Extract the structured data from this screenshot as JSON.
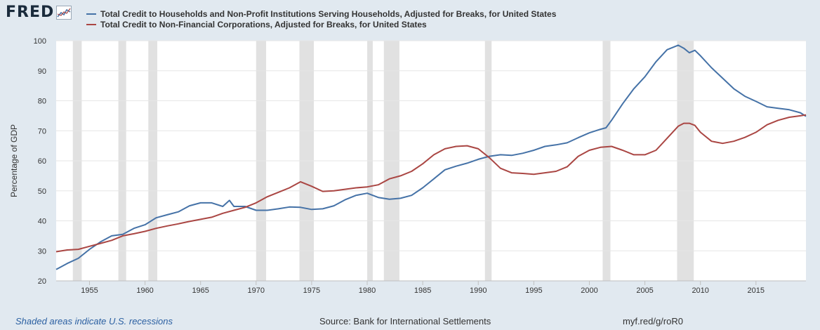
{
  "header": {
    "logo_text": "FRED",
    "legend": [
      {
        "label": "Total Credit to Households and Non-Profit Institutions Serving Households, Adjusted for Breaks, for United States",
        "color": "#4572a7"
      },
      {
        "label": "Total Credit to Non-Financial Corporations, Adjusted for Breaks, for United States",
        "color": "#aa4643"
      }
    ]
  },
  "footer": {
    "recession_note": "Shaded areas indicate U.S. recessions",
    "source": "Source: Bank for International Settlements",
    "url": "myf.red/g/roR0"
  },
  "chart_data": {
    "type": "line",
    "title": "",
    "xlabel": "",
    "ylabel": "Percentage of GDP",
    "xlim": [
      1952.0,
      2019.5
    ],
    "ylim": [
      20,
      100
    ],
    "y_ticks": [
      20,
      30,
      40,
      50,
      60,
      70,
      80,
      90,
      100
    ],
    "x_ticks": [
      1955,
      1960,
      1965,
      1970,
      1975,
      1980,
      1985,
      1990,
      1995,
      2000,
      2005,
      2010,
      2015
    ],
    "recession_color": "#e1e1e1",
    "recessions": [
      [
        1953.5,
        1954.3
      ],
      [
        1957.6,
        1958.3
      ],
      [
        1960.3,
        1961.1
      ],
      [
        1970.0,
        1970.9
      ],
      [
        1973.9,
        1975.2
      ],
      [
        1980.0,
        1980.5
      ],
      [
        1981.5,
        1982.9
      ],
      [
        1990.6,
        1991.2
      ],
      [
        2001.2,
        2001.9
      ],
      [
        2007.9,
        2009.4
      ]
    ],
    "series": [
      {
        "name": "Total Credit to Households and Non-Profit Institutions Serving Households, Adjusted for Breaks, for United States",
        "color": "#4572a7",
        "points": [
          [
            1952.0,
            23.8
          ],
          [
            1953.0,
            25.8
          ],
          [
            1954.0,
            27.5
          ],
          [
            1955.0,
            30.5
          ],
          [
            1956.0,
            33.0
          ],
          [
            1957.0,
            35.0
          ],
          [
            1958.0,
            35.5
          ],
          [
            1959.0,
            37.5
          ],
          [
            1960.0,
            38.7
          ],
          [
            1961.0,
            41.0
          ],
          [
            1962.0,
            42.0
          ],
          [
            1963.0,
            43.0
          ],
          [
            1964.0,
            45.0
          ],
          [
            1965.0,
            46.0
          ],
          [
            1966.0,
            46.0
          ],
          [
            1967.0,
            44.8
          ],
          [
            1967.6,
            46.8
          ],
          [
            1968.0,
            44.8
          ],
          [
            1969.0,
            44.8
          ],
          [
            1970.0,
            43.5
          ],
          [
            1971.0,
            43.5
          ],
          [
            1972.0,
            44.0
          ],
          [
            1973.0,
            44.6
          ],
          [
            1974.0,
            44.5
          ],
          [
            1975.0,
            43.8
          ],
          [
            1976.0,
            44.0
          ],
          [
            1977.0,
            45.0
          ],
          [
            1978.0,
            47.0
          ],
          [
            1979.0,
            48.5
          ],
          [
            1980.0,
            49.2
          ],
          [
            1981.0,
            47.8
          ],
          [
            1982.0,
            47.2
          ],
          [
            1983.0,
            47.5
          ],
          [
            1984.0,
            48.5
          ],
          [
            1985.0,
            51.0
          ],
          [
            1986.0,
            54.0
          ],
          [
            1987.0,
            57.0
          ],
          [
            1988.0,
            58.2
          ],
          [
            1989.0,
            59.2
          ],
          [
            1990.0,
            60.5
          ],
          [
            1991.0,
            61.5
          ],
          [
            1992.0,
            62.0
          ],
          [
            1993.0,
            61.8
          ],
          [
            1994.0,
            62.5
          ],
          [
            1995.0,
            63.5
          ],
          [
            1996.0,
            64.8
          ],
          [
            1997.0,
            65.3
          ],
          [
            1998.0,
            66.0
          ],
          [
            1999.0,
            67.7
          ],
          [
            2000.0,
            69.3
          ],
          [
            2001.0,
            70.5
          ],
          [
            2001.5,
            71.0
          ],
          [
            2002.0,
            73.5
          ],
          [
            2003.0,
            79.0
          ],
          [
            2004.0,
            84.0
          ],
          [
            2005.0,
            88.0
          ],
          [
            2006.0,
            93.0
          ],
          [
            2007.0,
            97.0
          ],
          [
            2008.0,
            98.5
          ],
          [
            2008.5,
            97.5
          ],
          [
            2009.0,
            96.0
          ],
          [
            2009.5,
            96.8
          ],
          [
            2010.0,
            95.0
          ],
          [
            2011.0,
            91.0
          ],
          [
            2012.0,
            87.5
          ],
          [
            2013.0,
            84.0
          ],
          [
            2014.0,
            81.5
          ],
          [
            2015.0,
            79.8
          ],
          [
            2016.0,
            78.0
          ],
          [
            2017.0,
            77.5
          ],
          [
            2018.0,
            77.0
          ],
          [
            2019.0,
            76.0
          ],
          [
            2019.5,
            74.8
          ]
        ]
      },
      {
        "name": "Total Credit to Non-Financial Corporations, Adjusted for Breaks, for United States",
        "color": "#aa4643",
        "points": [
          [
            1952.0,
            29.7
          ],
          [
            1953.0,
            30.3
          ],
          [
            1954.0,
            30.5
          ],
          [
            1955.0,
            31.5
          ],
          [
            1956.0,
            32.5
          ],
          [
            1957.0,
            33.5
          ],
          [
            1958.0,
            35.0
          ],
          [
            1959.0,
            35.7
          ],
          [
            1960.0,
            36.5
          ],
          [
            1961.0,
            37.5
          ],
          [
            1962.0,
            38.3
          ],
          [
            1963.0,
            39.0
          ],
          [
            1964.0,
            39.8
          ],
          [
            1965.0,
            40.5
          ],
          [
            1966.0,
            41.2
          ],
          [
            1967.0,
            42.5
          ],
          [
            1968.0,
            43.5
          ],
          [
            1969.0,
            44.5
          ],
          [
            1970.0,
            46.0
          ],
          [
            1971.0,
            48.0
          ],
          [
            1972.0,
            49.5
          ],
          [
            1973.0,
            51.0
          ],
          [
            1974.0,
            53.0
          ],
          [
            1975.0,
            51.5
          ],
          [
            1976.0,
            49.8
          ],
          [
            1977.0,
            50.0
          ],
          [
            1978.0,
            50.5
          ],
          [
            1979.0,
            51.0
          ],
          [
            1980.0,
            51.3
          ],
          [
            1981.0,
            52.0
          ],
          [
            1982.0,
            54.0
          ],
          [
            1983.0,
            55.0
          ],
          [
            1984.0,
            56.5
          ],
          [
            1985.0,
            59.0
          ],
          [
            1986.0,
            62.0
          ],
          [
            1987.0,
            64.0
          ],
          [
            1988.0,
            64.8
          ],
          [
            1989.0,
            65.0
          ],
          [
            1990.0,
            64.0
          ],
          [
            1991.0,
            61.0
          ],
          [
            1992.0,
            57.5
          ],
          [
            1993.0,
            56.0
          ],
          [
            1994.0,
            55.8
          ],
          [
            1995.0,
            55.5
          ],
          [
            1996.0,
            56.0
          ],
          [
            1997.0,
            56.5
          ],
          [
            1998.0,
            58.0
          ],
          [
            1999.0,
            61.5
          ],
          [
            2000.0,
            63.5
          ],
          [
            2001.0,
            64.5
          ],
          [
            2002.0,
            64.8
          ],
          [
            2003.0,
            63.5
          ],
          [
            2004.0,
            62.0
          ],
          [
            2005.0,
            62.0
          ],
          [
            2006.0,
            63.5
          ],
          [
            2007.0,
            67.5
          ],
          [
            2008.0,
            71.5
          ],
          [
            2008.5,
            72.5
          ],
          [
            2009.0,
            72.5
          ],
          [
            2009.5,
            71.8
          ],
          [
            2010.0,
            69.5
          ],
          [
            2011.0,
            66.5
          ],
          [
            2012.0,
            65.8
          ],
          [
            2013.0,
            66.5
          ],
          [
            2014.0,
            67.8
          ],
          [
            2015.0,
            69.5
          ],
          [
            2016.0,
            72.0
          ],
          [
            2017.0,
            73.5
          ],
          [
            2018.0,
            74.5
          ],
          [
            2019.0,
            75.0
          ],
          [
            2019.5,
            75.3
          ]
        ]
      }
    ]
  }
}
